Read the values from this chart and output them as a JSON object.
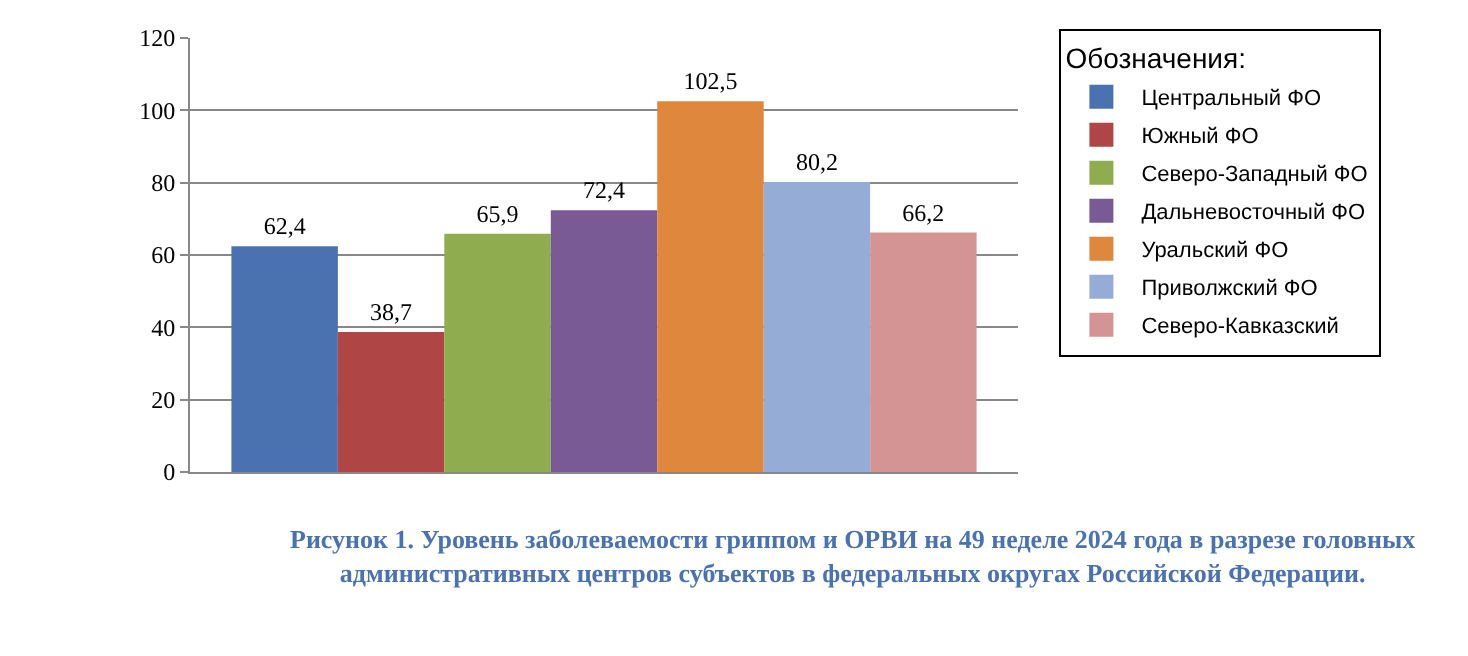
{
  "chart_data": {
    "type": "bar",
    "categories": [
      null
    ],
    "series": [
      {
        "name": "Центральный ФО",
        "color": "#4a72b0",
        "values": [
          62.4
        ],
        "value_labels": [
          "62,4"
        ]
      },
      {
        "name": "Южный ФО",
        "color": "#b04545",
        "values": [
          38.7
        ],
        "value_labels": [
          "38,7"
        ]
      },
      {
        "name": "Северо-Западный ФО",
        "color": "#8fac4e",
        "values": [
          65.9
        ],
        "value_labels": [
          "65,9"
        ]
      },
      {
        "name": "Дальневосточный ФО",
        "color": "#7a5a95",
        "values": [
          72.4
        ],
        "value_labels": [
          "72,4"
        ]
      },
      {
        "name": "Уральский ФО",
        "color": "#e0873e",
        "values": [
          102.5
        ],
        "value_labels": [
          "102,5"
        ]
      },
      {
        "name": "Приволжский ФО",
        "color": "#94acd6",
        "values": [
          80.2
        ],
        "value_labels": [
          "80,2"
        ]
      },
      {
        "name": "Северо-Кавказский",
        "color": "#d49494",
        "values": [
          66.2
        ],
        "value_labels": [
          "66,2"
        ]
      }
    ],
    "ylim": [
      0,
      120
    ],
    "yticks": [
      0,
      20,
      40,
      60,
      80,
      100,
      120
    ],
    "grid": "y",
    "legend": "right",
    "legend_title": "Обозначения:",
    "annotations": [
      "Рисунок 1. Уровень заболеваемости гриппом и ОРВИ на 49 неделе 2024 года в разрезе головных административных центров субъектов в федеральных округах Российской Федерации."
    ]
  }
}
